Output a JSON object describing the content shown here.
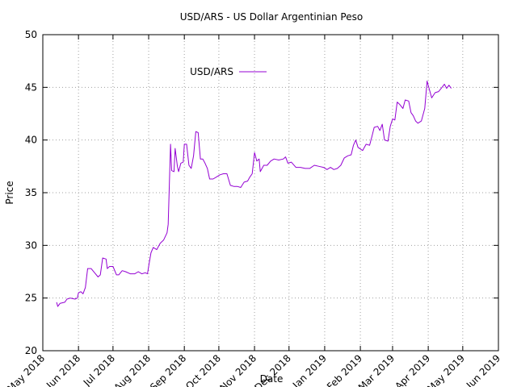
{
  "chart_data": {
    "type": "line",
    "title": "USD/ARS - US Dollar Argentinian Peso",
    "xlabel": "Date",
    "ylabel": "Price",
    "xlim": [
      "2018-05-01",
      "2019-06-01"
    ],
    "ylim": [
      20,
      50
    ],
    "y_ticks": [
      20,
      25,
      30,
      35,
      40,
      45,
      50
    ],
    "x_ticks": [
      {
        "date": "2018-05-01",
        "label": "May 2018"
      },
      {
        "date": "2018-06-01",
        "label": "Jun 2018"
      },
      {
        "date": "2018-07-01",
        "label": "Jul 2018"
      },
      {
        "date": "2018-08-01",
        "label": "Aug 2018"
      },
      {
        "date": "2018-09-01",
        "label": "Sep 2018"
      },
      {
        "date": "2018-10-01",
        "label": "Oct 2018"
      },
      {
        "date": "2018-11-01",
        "label": "Nov 2018"
      },
      {
        "date": "2018-12-01",
        "label": "Dec 2018"
      },
      {
        "date": "2019-01-01",
        "label": "Jan 2019"
      },
      {
        "date": "2019-02-01",
        "label": "Feb 2019"
      },
      {
        "date": "2019-03-01",
        "label": "Mar 2019"
      },
      {
        "date": "2019-04-01",
        "label": "Apr 2019"
      },
      {
        "date": "2019-05-01",
        "label": "May 2019"
      },
      {
        "date": "2019-06-01",
        "label": "Jun 2019"
      }
    ],
    "grid": true,
    "legend_position": "top-center",
    "series": [
      {
        "name": "USD/ARS",
        "color": "#9400d3",
        "points": [
          [
            "2018-05-13",
            24.6
          ],
          [
            "2018-05-14",
            24.2
          ],
          [
            "2018-05-16",
            24.5
          ],
          [
            "2018-05-20",
            24.6
          ],
          [
            "2018-05-22",
            24.9
          ],
          [
            "2018-05-25",
            25.0
          ],
          [
            "2018-05-29",
            24.9
          ],
          [
            "2018-05-31",
            25.0
          ],
          [
            "2018-06-01",
            25.5
          ],
          [
            "2018-06-03",
            25.6
          ],
          [
            "2018-06-05",
            25.4
          ],
          [
            "2018-06-07",
            26.0
          ],
          [
            "2018-06-09",
            27.8
          ],
          [
            "2018-06-12",
            27.8
          ],
          [
            "2018-06-15",
            27.4
          ],
          [
            "2018-06-18",
            27.0
          ],
          [
            "2018-06-20",
            27.2
          ],
          [
            "2018-06-22",
            28.8
          ],
          [
            "2018-06-25",
            28.7
          ],
          [
            "2018-06-26",
            27.8
          ],
          [
            "2018-06-28",
            28.0
          ],
          [
            "2018-07-01",
            28.0
          ],
          [
            "2018-07-04",
            27.2
          ],
          [
            "2018-07-06",
            27.2
          ],
          [
            "2018-07-09",
            27.6
          ],
          [
            "2018-07-12",
            27.5
          ],
          [
            "2018-07-16",
            27.3
          ],
          [
            "2018-07-20",
            27.3
          ],
          [
            "2018-07-23",
            27.5
          ],
          [
            "2018-07-26",
            27.3
          ],
          [
            "2018-07-29",
            27.4
          ],
          [
            "2018-07-31",
            27.3
          ],
          [
            "2018-08-01",
            28.0
          ],
          [
            "2018-08-03",
            29.3
          ],
          [
            "2018-08-05",
            29.8
          ],
          [
            "2018-08-08",
            29.6
          ],
          [
            "2018-08-11",
            30.2
          ],
          [
            "2018-08-14",
            30.5
          ],
          [
            "2018-08-17",
            31.2
          ],
          [
            "2018-08-18",
            32.0
          ],
          [
            "2018-08-20",
            39.6
          ],
          [
            "2018-08-21",
            37.1
          ],
          [
            "2018-08-23",
            37.0
          ],
          [
            "2018-08-24",
            39.2
          ],
          [
            "2018-08-26",
            37.5
          ],
          [
            "2018-08-27",
            37.0
          ],
          [
            "2018-08-29",
            37.8
          ],
          [
            "2018-08-31",
            37.9
          ],
          [
            "2018-09-01",
            39.6
          ],
          [
            "2018-09-03",
            39.6
          ],
          [
            "2018-09-05",
            37.6
          ],
          [
            "2018-09-07",
            37.3
          ],
          [
            "2018-09-09",
            38.5
          ],
          [
            "2018-09-11",
            40.8
          ],
          [
            "2018-09-13",
            40.7
          ],
          [
            "2018-09-15",
            38.2
          ],
          [
            "2018-09-17",
            38.2
          ],
          [
            "2018-09-19",
            37.8
          ],
          [
            "2018-09-21",
            37.3
          ],
          [
            "2018-09-23",
            36.3
          ],
          [
            "2018-09-26",
            36.3
          ],
          [
            "2018-09-29",
            36.5
          ],
          [
            "2018-10-02",
            36.7
          ],
          [
            "2018-10-05",
            36.8
          ],
          [
            "2018-10-08",
            36.8
          ],
          [
            "2018-10-11",
            35.7
          ],
          [
            "2018-10-14",
            35.6
          ],
          [
            "2018-10-17",
            35.6
          ],
          [
            "2018-10-20",
            35.5
          ],
          [
            "2018-10-23",
            36.0
          ],
          [
            "2018-10-26",
            36.1
          ],
          [
            "2018-10-28",
            36.5
          ],
          [
            "2018-10-30",
            36.8
          ],
          [
            "2018-11-01",
            38.8
          ],
          [
            "2018-11-03",
            38.0
          ],
          [
            "2018-11-05",
            38.2
          ],
          [
            "2018-11-06",
            37.0
          ],
          [
            "2018-11-09",
            37.6
          ],
          [
            "2018-11-12",
            37.6
          ],
          [
            "2018-11-15",
            38.0
          ],
          [
            "2018-11-18",
            38.2
          ],
          [
            "2018-11-22",
            38.1
          ],
          [
            "2018-11-26",
            38.2
          ],
          [
            "2018-11-28",
            38.4
          ],
          [
            "2018-11-30",
            37.8
          ],
          [
            "2018-12-03",
            37.9
          ],
          [
            "2018-12-07",
            37.4
          ],
          [
            "2018-12-11",
            37.4
          ],
          [
            "2018-12-15",
            37.3
          ],
          [
            "2018-12-19",
            37.3
          ],
          [
            "2018-12-23",
            37.6
          ],
          [
            "2018-12-27",
            37.5
          ],
          [
            "2018-12-31",
            37.4
          ],
          [
            "2019-01-03",
            37.2
          ],
          [
            "2019-01-06",
            37.4
          ],
          [
            "2019-01-09",
            37.2
          ],
          [
            "2019-01-12",
            37.3
          ],
          [
            "2019-01-15",
            37.6
          ],
          [
            "2019-01-18",
            38.3
          ],
          [
            "2019-01-21",
            38.5
          ],
          [
            "2019-01-24",
            38.6
          ],
          [
            "2019-01-26",
            39.5
          ],
          [
            "2019-01-28",
            40.0
          ],
          [
            "2019-01-30",
            39.3
          ],
          [
            "2019-02-03",
            39.0
          ],
          [
            "2019-02-06",
            39.6
          ],
          [
            "2019-02-09",
            39.5
          ],
          [
            "2019-02-11",
            40.3
          ],
          [
            "2019-02-13",
            41.2
          ],
          [
            "2019-02-16",
            41.3
          ],
          [
            "2019-02-18",
            40.9
          ],
          [
            "2019-02-20",
            41.5
          ],
          [
            "2019-02-22",
            40.0
          ],
          [
            "2019-02-25",
            39.9
          ],
          [
            "2019-02-27",
            41.3
          ],
          [
            "2019-03-01",
            42.0
          ],
          [
            "2019-03-03",
            41.9
          ],
          [
            "2019-03-05",
            43.6
          ],
          [
            "2019-03-07",
            43.4
          ],
          [
            "2019-03-10",
            43.0
          ],
          [
            "2019-03-12",
            43.8
          ],
          [
            "2019-03-15",
            43.7
          ],
          [
            "2019-03-17",
            42.6
          ],
          [
            "2019-03-19",
            42.3
          ],
          [
            "2019-03-21",
            41.8
          ],
          [
            "2019-03-23",
            41.6
          ],
          [
            "2019-03-26",
            41.8
          ],
          [
            "2019-03-29",
            43.0
          ],
          [
            "2019-03-31",
            45.6
          ],
          [
            "2019-04-02",
            44.8
          ],
          [
            "2019-04-04",
            44.0
          ],
          [
            "2019-04-07",
            44.5
          ],
          [
            "2019-04-10",
            44.6
          ],
          [
            "2019-04-13",
            45.0
          ],
          [
            "2019-04-15",
            45.3
          ],
          [
            "2019-04-17",
            44.9
          ],
          [
            "2019-04-19",
            45.2
          ],
          [
            "2019-04-21",
            44.9
          ]
        ]
      }
    ]
  }
}
